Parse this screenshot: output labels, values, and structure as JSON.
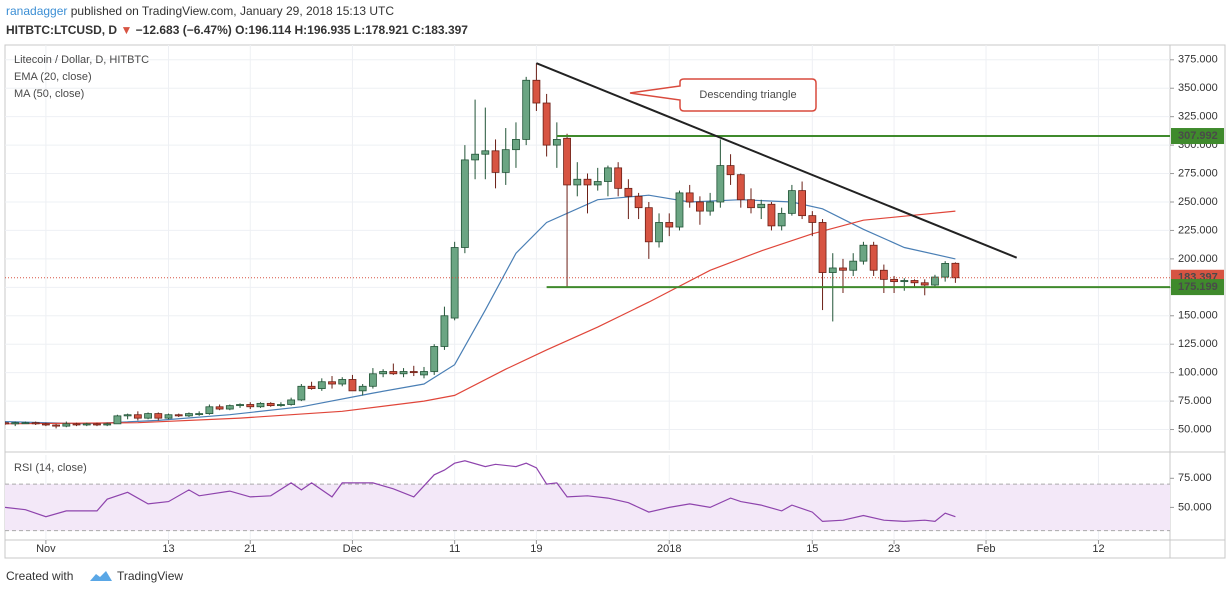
{
  "header": {
    "author": "ranadagger",
    "published": "published on TradingView.com, January 29, 2018 15:13 UTC",
    "symbol": "HITBTC:LTCUSD, D",
    "change": "−12.683 (−6.47%)",
    "open": "O:196.114",
    "high": "H:196.935",
    "low": "L:178.921",
    "close": "C:183.397"
  },
  "footer": {
    "created": "Created with",
    "brand": "TradingView"
  },
  "chart_data": {
    "type": "candlestick",
    "title": "Litecoin / Dollar, D, HITBTC",
    "annotation": "Descending triangle",
    "up_color": "#6ba583",
    "down_color": "#d75442",
    "grid": true,
    "xlim": [
      "2017-10-28",
      "2018-02-19"
    ],
    "xticks": [
      {
        "value": "2017-11-01",
        "label": "Nov"
      },
      {
        "value": "2017-11-13",
        "label": "13"
      },
      {
        "value": "2017-11-21",
        "label": "21"
      },
      {
        "value": "2017-12-01",
        "label": "Dec"
      },
      {
        "value": "2017-12-11",
        "label": "11"
      },
      {
        "value": "2017-12-19",
        "label": "19"
      },
      {
        "value": "2018-01-01",
        "label": "2018"
      },
      {
        "value": "2018-01-15",
        "label": "15"
      },
      {
        "value": "2018-01-23",
        "label": "23"
      },
      {
        "value": "2018-02-01",
        "label": "Feb"
      },
      {
        "value": "2018-02-12",
        "label": "12"
      }
    ],
    "ylim": [
      32,
      388
    ],
    "yticks": [
      {
        "value": 50,
        "label": "50.000"
      },
      {
        "value": 75,
        "label": "75.000"
      },
      {
        "value": 100,
        "label": "100.000"
      },
      {
        "value": 125,
        "label": "125.000"
      },
      {
        "value": 150,
        "label": "150.000"
      },
      {
        "value": 175,
        "label": "175.000"
      },
      {
        "value": 200,
        "label": "200.000"
      },
      {
        "value": 225,
        "label": "225.000"
      },
      {
        "value": 250,
        "label": "250.000"
      },
      {
        "value": 275,
        "label": "275.000"
      },
      {
        "value": 300,
        "label": "300.000"
      },
      {
        "value": 325,
        "label": "325.000"
      },
      {
        "value": 350,
        "label": "350.000"
      },
      {
        "value": 375,
        "label": "375.000"
      }
    ],
    "x": [
      "2017-10-28",
      "2017-10-29",
      "2017-10-30",
      "2017-10-31",
      "2017-11-01",
      "2017-11-02",
      "2017-11-03",
      "2017-11-04",
      "2017-11-05",
      "2017-11-06",
      "2017-11-07",
      "2017-11-08",
      "2017-11-09",
      "2017-11-10",
      "2017-11-11",
      "2017-11-12",
      "2017-11-13",
      "2017-11-14",
      "2017-11-15",
      "2017-11-16",
      "2017-11-17",
      "2017-11-18",
      "2017-11-19",
      "2017-11-20",
      "2017-11-21",
      "2017-11-22",
      "2017-11-23",
      "2017-11-24",
      "2017-11-25",
      "2017-11-26",
      "2017-11-27",
      "2017-11-28",
      "2017-11-29",
      "2017-11-30",
      "2017-12-01",
      "2017-12-02",
      "2017-12-03",
      "2017-12-04",
      "2017-12-05",
      "2017-12-06",
      "2017-12-07",
      "2017-12-08",
      "2017-12-09",
      "2017-12-10",
      "2017-12-11",
      "2017-12-12",
      "2017-12-13",
      "2017-12-14",
      "2017-12-15",
      "2017-12-16",
      "2017-12-17",
      "2017-12-18",
      "2017-12-19",
      "2017-12-20",
      "2017-12-21",
      "2017-12-22",
      "2017-12-23",
      "2017-12-24",
      "2017-12-25",
      "2017-12-26",
      "2017-12-27",
      "2017-12-28",
      "2017-12-29",
      "2017-12-30",
      "2017-12-31",
      "2018-01-01",
      "2018-01-02",
      "2018-01-03",
      "2018-01-04",
      "2018-01-05",
      "2018-01-06",
      "2018-01-07",
      "2018-01-08",
      "2018-01-09",
      "2018-01-10",
      "2018-01-11",
      "2018-01-12",
      "2018-01-13",
      "2018-01-14",
      "2018-01-15",
      "2018-01-16",
      "2018-01-17",
      "2018-01-18",
      "2018-01-19",
      "2018-01-20",
      "2018-01-21",
      "2018-01-22",
      "2018-01-23",
      "2018-01-24",
      "2018-01-25",
      "2018-01-26",
      "2018-01-27",
      "2018-01-28",
      "2018-01-29"
    ],
    "open": [
      56,
      55,
      56,
      56,
      55,
      54,
      53,
      55,
      54,
      55,
      54,
      55,
      62,
      63,
      60,
      64,
      60,
      63,
      62,
      64,
      64,
      70,
      68,
      71,
      72,
      70,
      73,
      71,
      72,
      76,
      88,
      86,
      92,
      90,
      94,
      84,
      88,
      99,
      101,
      99,
      101,
      98,
      101,
      123,
      148,
      210,
      287,
      292,
      295,
      276,
      296,
      305,
      357,
      337,
      300,
      306,
      265,
      270,
      265,
      268,
      280,
      262,
      255,
      245,
      215,
      232,
      228,
      258,
      250,
      242,
      250,
      282,
      274,
      252,
      245,
      248,
      229,
      240,
      260,
      238,
      232,
      188,
      192,
      190,
      198,
      212,
      190,
      182,
      180,
      181,
      179,
      177,
      184,
      196.114
    ],
    "high": [
      57,
      57,
      57,
      57,
      56,
      55,
      57,
      56,
      56,
      56,
      56,
      63,
      64,
      66,
      65,
      65,
      64,
      64,
      65,
      66,
      72,
      72,
      72,
      73,
      74,
      74,
      74,
      74,
      78,
      90,
      92,
      95,
      97,
      96,
      98,
      90,
      104,
      103,
      108,
      104,
      106,
      105,
      125,
      158,
      215,
      300,
      340,
      333,
      305,
      315,
      320,
      360,
      372,
      345,
      320,
      310,
      285,
      275,
      280,
      282,
      285,
      270,
      258,
      250,
      240,
      240,
      260,
      265,
      255,
      258,
      305,
      292,
      275,
      262,
      252,
      250,
      245,
      265,
      268,
      242,
      235,
      205,
      200,
      205,
      215,
      215,
      195,
      185,
      183,
      182,
      182,
      186,
      198,
      196.935
    ],
    "low": [
      54,
      53,
      55,
      54,
      53,
      51,
      52,
      53,
      53,
      53,
      53,
      55,
      59,
      58,
      59,
      58,
      59,
      61,
      61,
      62,
      63,
      67,
      67,
      69,
      68,
      69,
      70,
      70,
      71,
      75,
      85,
      84,
      86,
      88,
      84,
      80,
      86,
      96,
      98,
      96,
      97,
      95,
      98,
      120,
      146,
      205,
      270,
      270,
      262,
      265,
      280,
      300,
      330,
      290,
      280,
      175,
      255,
      240,
      260,
      255,
      255,
      235,
      235,
      200,
      210,
      220,
      225,
      245,
      230,
      238,
      245,
      265,
      245,
      240,
      235,
      225,
      225,
      238,
      235,
      220,
      155,
      145,
      170,
      185,
      195,
      185,
      170,
      170,
      172,
      175,
      168,
      175,
      180,
      178.921
    ],
    "close": [
      55,
      56,
      56,
      55,
      54,
      53,
      55,
      54,
      55,
      54,
      55,
      62,
      63,
      60,
      64,
      60,
      63,
      62,
      64,
      64,
      70,
      68,
      71,
      72,
      70,
      73,
      71,
      72,
      76,
      88,
      86,
      92,
      90,
      94,
      84,
      88,
      99,
      101,
      99,
      101,
      100,
      101,
      123,
      150,
      210,
      287,
      292,
      295,
      276,
      296,
      305,
      357,
      337,
      300,
      305,
      265,
      270,
      265,
      268,
      280,
      262,
      255,
      245,
      215,
      232,
      228,
      258,
      250,
      242,
      250,
      282,
      274,
      252,
      245,
      248,
      229,
      240,
      260,
      238,
      232,
      188,
      192,
      190,
      198,
      212,
      190,
      182,
      180,
      181,
      179,
      177,
      184,
      196,
      183.397
    ],
    "overlays": [
      {
        "name": "EMA (20, close)",
        "color": "#4a7fb5",
        "x": [
          "2017-10-28",
          "2017-11-05",
          "2017-11-12",
          "2017-11-19",
          "2017-11-26",
          "2017-12-03",
          "2017-12-08",
          "2017-12-11",
          "2017-12-14",
          "2017-12-17",
          "2017-12-20",
          "2017-12-25",
          "2017-12-30",
          "2018-01-03",
          "2018-01-08",
          "2018-01-13",
          "2018-01-16",
          "2018-01-20",
          "2018-01-24",
          "2018-01-29"
        ],
        "values": [
          57,
          55,
          58,
          63,
          70,
          82,
          90,
          107,
          155,
          205,
          232,
          252,
          256,
          250,
          252,
          250,
          244,
          226,
          210,
          200
        ]
      },
      {
        "name": "MA (50, close)",
        "color": "#e0463a",
        "x": [
          "2017-10-28",
          "2017-11-10",
          "2017-11-20",
          "2017-11-30",
          "2017-12-08",
          "2017-12-11",
          "2017-12-16",
          "2017-12-20",
          "2017-12-25",
          "2017-12-30",
          "2018-01-05",
          "2018-01-10",
          "2018-01-15",
          "2018-01-20",
          "2018-01-29"
        ],
        "values": [
          55,
          56,
          60,
          66,
          75,
          80,
          103,
          120,
          140,
          162,
          190,
          207,
          222,
          234,
          242
        ]
      }
    ],
    "hlines": [
      {
        "value": 307.992,
        "from": "2017-12-21",
        "color": "#3f8a2c"
      },
      {
        "value": 175.199,
        "from": "2017-12-20",
        "color": "#3f8a2c"
      }
    ],
    "trendline": {
      "x": [
        "2017-12-19",
        "2018-02-04"
      ],
      "values": [
        372,
        201
      ],
      "color": "#222"
    },
    "last_color": "#d75442",
    "rsi": {
      "name": "RSI (14, close)",
      "color": "#8e44ad",
      "ylim": [
        22,
        95
      ],
      "yticks": [
        {
          "value": 50,
          "label": "50.000"
        },
        {
          "value": 75,
          "label": "75.000"
        }
      ],
      "band": [
        30,
        70
      ],
      "x": [
        "2017-10-28",
        "2017-10-30",
        "2017-11-01",
        "2017-11-03",
        "2017-11-06",
        "2017-11-07",
        "2017-11-09",
        "2017-11-11",
        "2017-11-13",
        "2017-11-15",
        "2017-11-16",
        "2017-11-19",
        "2017-11-21",
        "2017-11-23",
        "2017-11-25",
        "2017-11-26",
        "2017-11-27",
        "2017-11-29",
        "2017-11-30",
        "2017-12-03",
        "2017-12-05",
        "2017-12-07",
        "2017-12-09",
        "2017-12-10",
        "2017-12-11",
        "2017-12-12",
        "2017-12-14",
        "2017-12-15",
        "2017-12-17",
        "2017-12-18",
        "2017-12-19",
        "2017-12-20",
        "2017-12-21",
        "2017-12-22",
        "2017-12-24",
        "2017-12-26",
        "2017-12-28",
        "2017-12-30",
        "2018-01-01",
        "2018-01-03",
        "2018-01-05",
        "2018-01-07",
        "2018-01-08",
        "2018-01-10",
        "2018-01-12",
        "2018-01-13",
        "2018-01-15",
        "2018-01-16",
        "2018-01-18",
        "2018-01-20",
        "2018-01-22",
        "2018-01-24",
        "2018-01-26",
        "2018-01-27",
        "2018-01-28",
        "2018-01-29"
      ],
      "values": [
        50,
        48,
        42,
        47,
        47,
        57,
        63,
        53,
        55,
        65,
        60,
        64,
        59,
        60,
        71,
        65,
        71,
        59,
        71,
        71,
        66,
        59,
        78,
        82,
        88,
        90,
        85,
        87,
        85,
        88,
        84,
        70,
        71,
        59,
        60,
        58,
        54,
        46,
        50,
        53,
        50,
        58,
        55,
        52,
        47,
        52,
        46,
        38,
        39,
        43,
        39,
        38,
        39,
        38,
        45,
        42
      ]
    }
  }
}
